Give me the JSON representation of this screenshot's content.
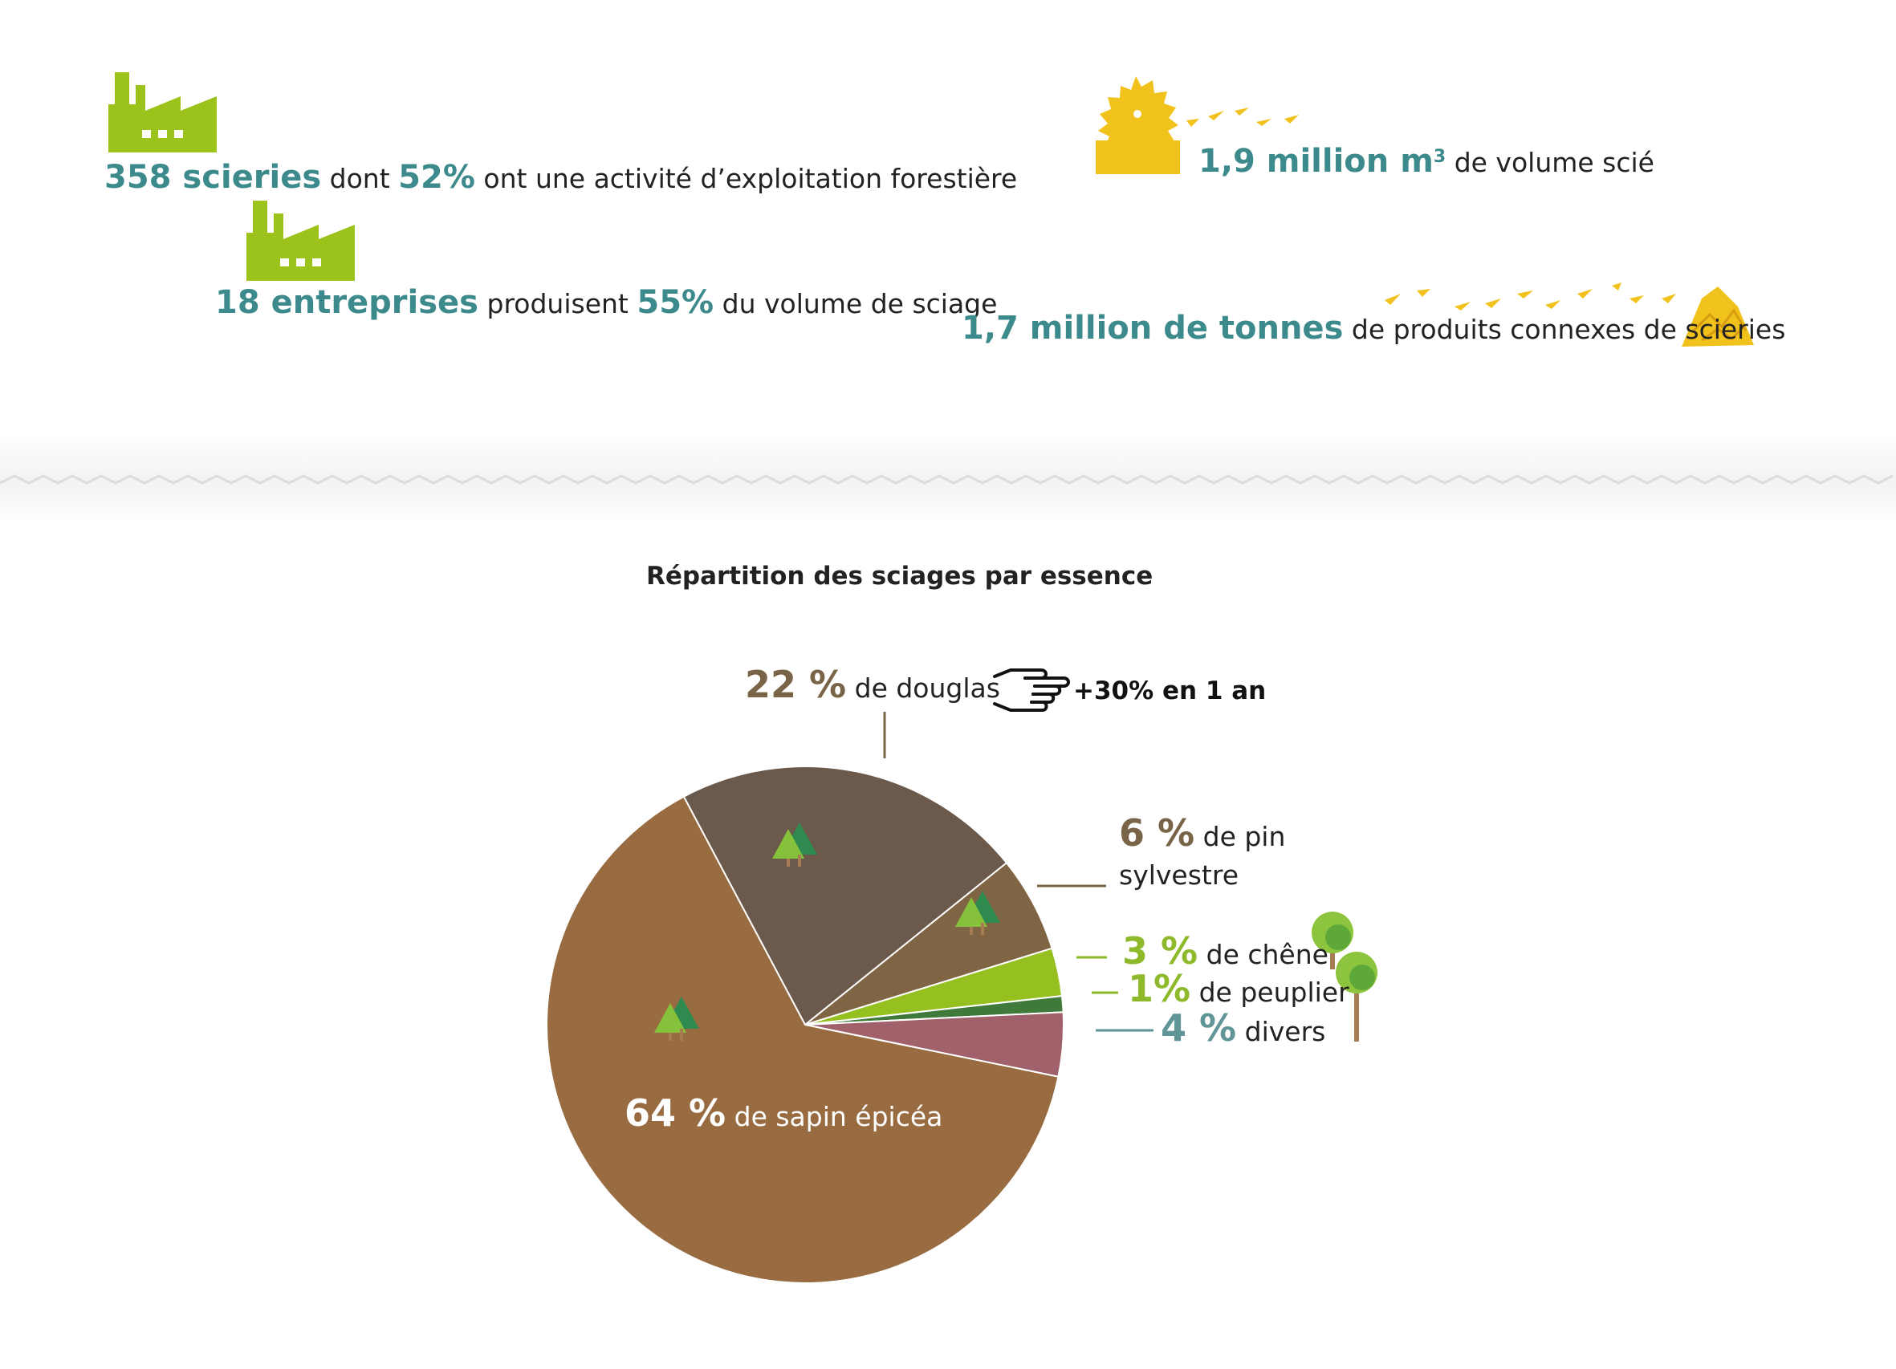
{
  "stats": {
    "scieries": {
      "number": "358 scieries",
      "mid1": "dont",
      "pct": "52%",
      "tail": "ont une activité d’exploitation forestière"
    },
    "entreprises": {
      "number": "18 entreprises",
      "mid1": "produisent",
      "pct": "55%",
      "tail": "du volume de sciage"
    },
    "volume": {
      "number": "1,9 million m",
      "sup": "3",
      "tail": "de volume scié"
    },
    "connexes": {
      "number": "1,7 million de tonnes",
      "tail": "de produits connexes de scieries"
    }
  },
  "icons": {
    "factory": "factory-icon",
    "saw": "saw-blade-icon",
    "chips": "wood-chips-icon",
    "hand": "pointing-hand-icon",
    "conifer": "conifer-trees-icon",
    "deciduous": "deciduous-tree-icon"
  },
  "colors": {
    "teal": "#3d8a8c",
    "green_icon": "#9bc31c",
    "yellow": "#f1c21b"
  },
  "chart_data": {
    "type": "pie",
    "title": "Répartition des sciages par essence",
    "start_angle_deg": -118,
    "slices": [
      {
        "pct": 22,
        "label_pct": "22 %",
        "label_text": "de douglas",
        "color": "#6b5a4c",
        "pct_color": "#7a6447"
      },
      {
        "pct": 6,
        "label_pct": "6 %",
        "label_text": "de pin sylvestre",
        "color": "#7f6544",
        "pct_color": "#7a6447"
      },
      {
        "pct": 3,
        "label_pct": "3 %",
        "label_text": "de chêne",
        "color": "#96bf20",
        "pct_color": "#8db92a"
      },
      {
        "pct": 1,
        "label_pct": "1%",
        "label_text": "de peuplier",
        "color": "#3f7a3b",
        "pct_color": "#8db92a"
      },
      {
        "pct": 4,
        "label_pct": "4 %",
        "label_text": "divers",
        "color": "#a0616a",
        "pct_color": "#5f9597"
      },
      {
        "pct": 64,
        "label_pct": "64 %",
        "label_text": "de sapin épicéa",
        "color": "#986b40",
        "pct_color": "#ffffff"
      }
    ],
    "annotation": "+30% en 1 an"
  }
}
